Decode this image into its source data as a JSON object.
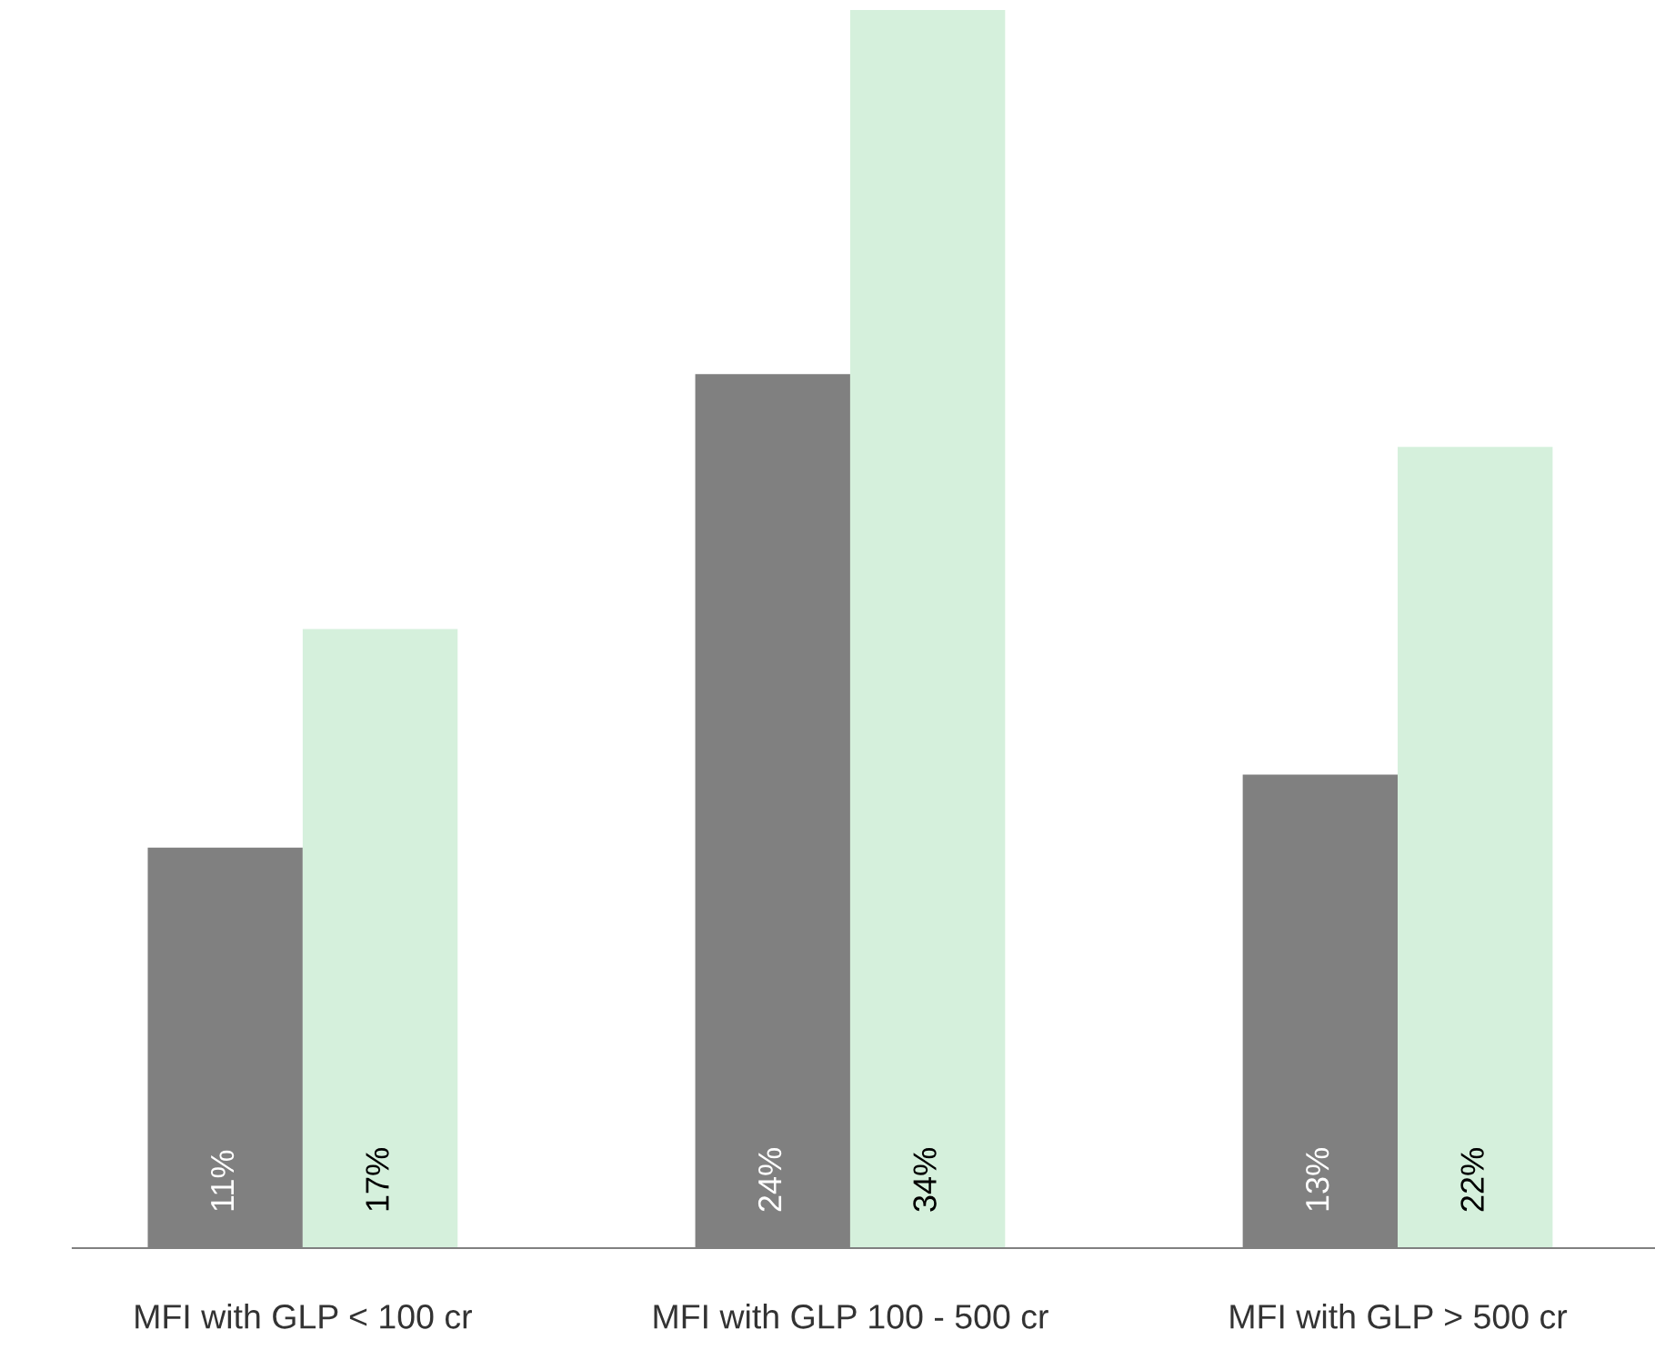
{
  "chart_data": {
    "type": "bar",
    "categories": [
      "MFI with GLP < 100 cr",
      "MFI with GLP 100 - 500 cr",
      "MFI with GLP > 500 cr"
    ],
    "series": [
      {
        "color": "#808080",
        "values": [
          11,
          24,
          13
        ],
        "value_labels": [
          "11%",
          "24%",
          "13%"
        ]
      },
      {
        "color": "#d5f0dc",
        "values": [
          17,
          34,
          22
        ],
        "value_labels": [
          "17%",
          "34%",
          "22%"
        ]
      }
    ],
    "grid": false,
    "legend": false
  }
}
